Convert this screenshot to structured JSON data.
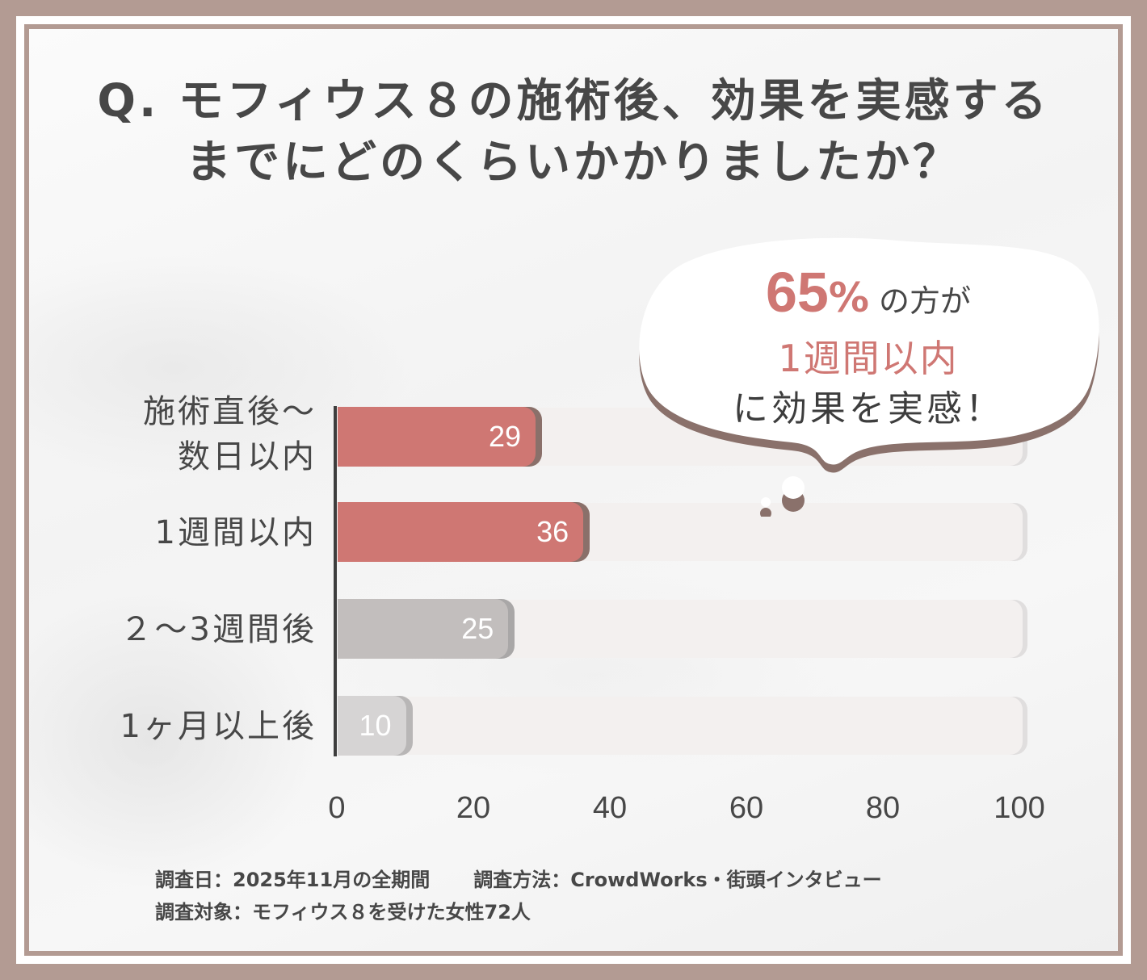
{
  "title": {
    "line1": "Q. モフィウス８の施術後、効果を実感する",
    "line2": "までにどのくらいかかりましたか？"
  },
  "callout": {
    "percent": "65",
    "percent_sign": "%",
    "line1_suffix": "の方が",
    "line2": "1週間以内",
    "line3": "に効果を実感！"
  },
  "footer": {
    "survey_date": "調査日：2025年11月の全期間",
    "survey_method": "調査方法：CrowdWorks・街頭インタビュー",
    "survey_target": "調査対象：モフィウス８を受けた女性72人"
  },
  "colors": {
    "highlight": "#cf7773",
    "highlight_shadow": "#8a706a",
    "neutral": "#c2bebd",
    "neutral_shadow": "#a9a7a7",
    "neutral_light": "#d6d4d4",
    "neutral_light_shadow": "#b8b6b6",
    "frame": "#b39b93",
    "text": "#474747"
  },
  "chart_data": {
    "type": "bar",
    "orientation": "horizontal",
    "title": "Q. モフィウス８の施術後、効果を実感するまでにどのくらいかかりましたか？",
    "categories": [
      "施術直後～数日以内",
      "1週間以内",
      "2～3週間後",
      "1ヶ月以上後"
    ],
    "category_lines": [
      [
        "施術直後～",
        "数日以内"
      ],
      [
        "1週間以内"
      ],
      [
        "２～3週間後"
      ],
      [
        "1ヶ月以上後"
      ]
    ],
    "values": [
      29,
      36,
      25,
      10
    ],
    "xlabel": "",
    "ylabel": "",
    "xlim": [
      0,
      100
    ],
    "xticks": [
      0,
      20,
      40,
      60,
      80,
      100
    ],
    "grid": false,
    "data_labels": true,
    "annotation": "65%の方が1週間以内に効果を実感！"
  }
}
